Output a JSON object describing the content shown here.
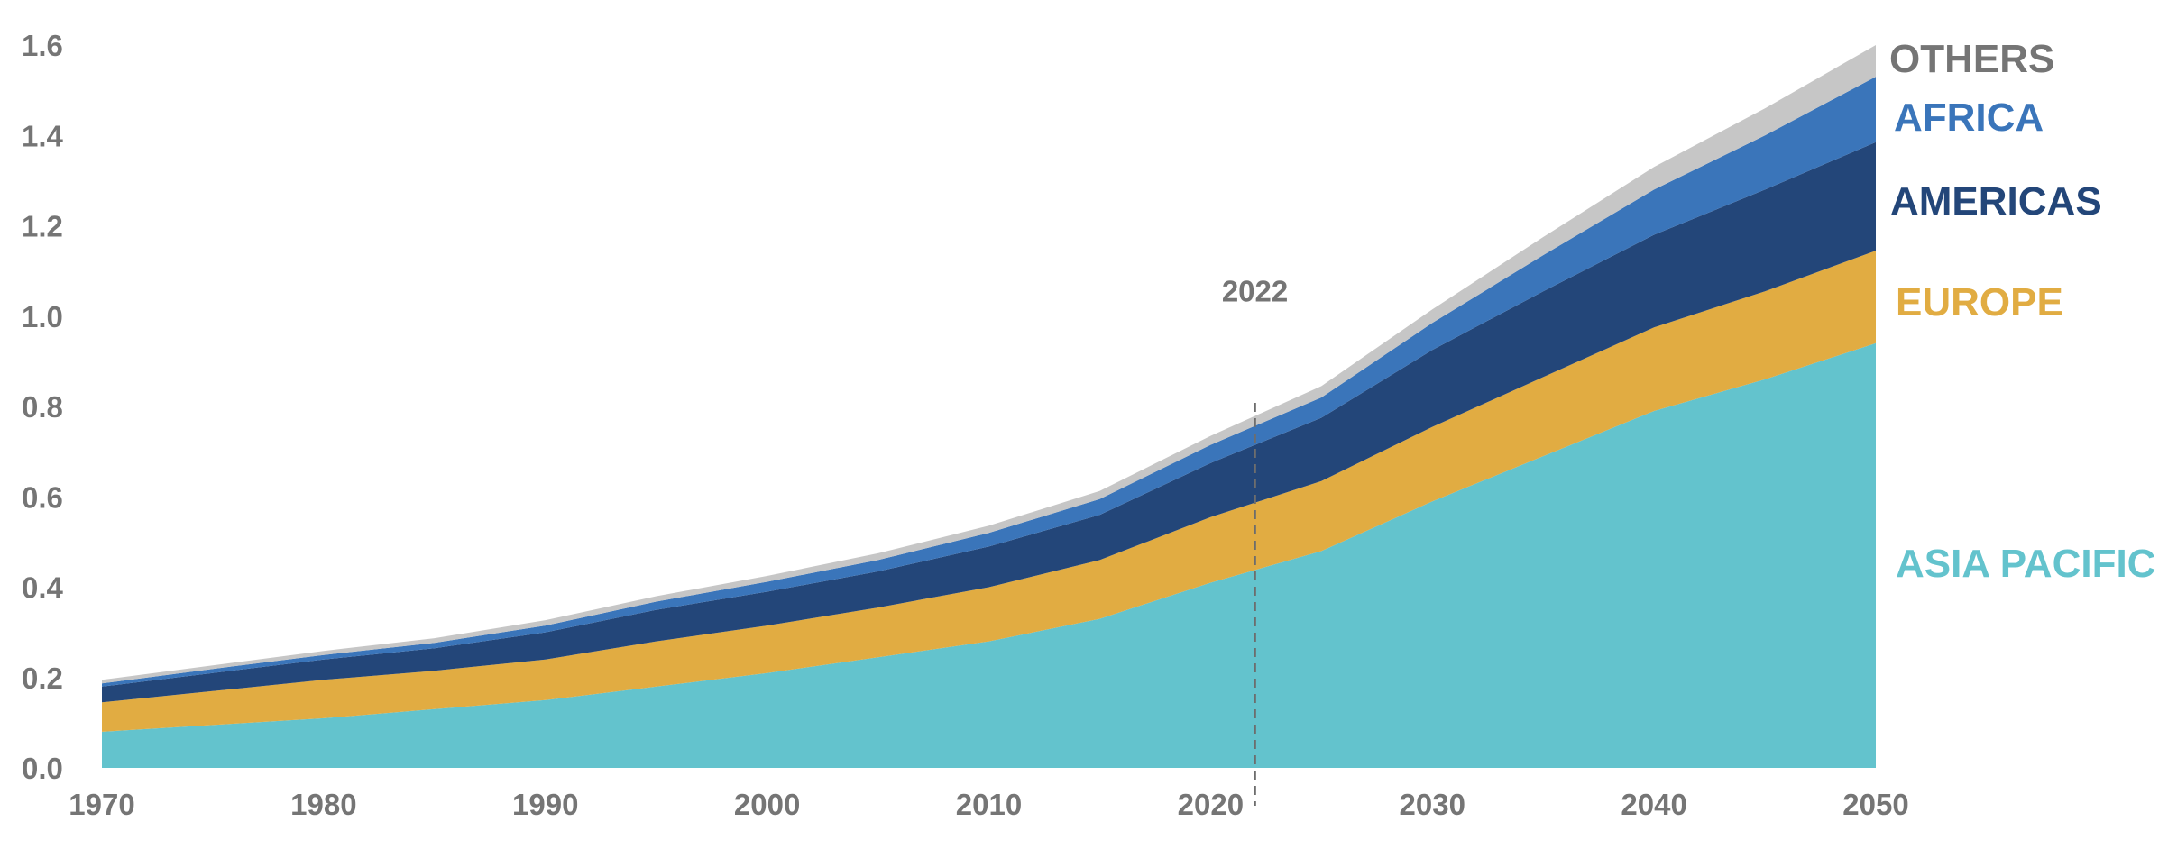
{
  "chart_data": {
    "type": "area",
    "stacked": true,
    "title": "",
    "xlabel": "",
    "ylabel": "",
    "x": [
      1970,
      1975,
      1980,
      1985,
      1990,
      1995,
      2000,
      2005,
      2010,
      2015,
      2020,
      2025,
      2030,
      2035,
      2040,
      2045,
      2050
    ],
    "xlim": [
      1970,
      2050
    ],
    "ylim": [
      0,
      1.6
    ],
    "x_ticks": [
      "1970",
      "1980",
      "1990",
      "2000",
      "2010",
      "2020",
      "2030",
      "2040",
      "2050"
    ],
    "y_ticks": [
      "0.0",
      "0.2",
      "0.4",
      "0.6",
      "0.8",
      "1.0",
      "1.2",
      "1.4",
      "1.6"
    ],
    "grid": false,
    "legend": "inline-right",
    "series": [
      {
        "name": "ASIA PACIFIC",
        "color": "#63C3CD",
        "values": [
          0.08,
          0.095,
          0.11,
          0.13,
          0.15,
          0.18,
          0.21,
          0.245,
          0.28,
          0.33,
          0.41,
          0.48,
          0.59,
          0.69,
          0.79,
          0.86,
          0.94
        ]
      },
      {
        "name": "EUROPE",
        "color": "#E1AC42",
        "values": [
          0.065,
          0.075,
          0.085,
          0.085,
          0.09,
          0.1,
          0.105,
          0.11,
          0.12,
          0.13,
          0.145,
          0.155,
          0.165,
          0.175,
          0.185,
          0.195,
          0.205
        ]
      },
      {
        "name": "AMERICAS",
        "color": "#234679",
        "values": [
          0.035,
          0.04,
          0.045,
          0.05,
          0.06,
          0.07,
          0.075,
          0.08,
          0.09,
          0.1,
          0.12,
          0.14,
          0.17,
          0.19,
          0.205,
          0.225,
          0.24
        ]
      },
      {
        "name": "AFRICA",
        "color": "#3A75BA",
        "values": [
          0.007,
          0.009,
          0.01,
          0.012,
          0.015,
          0.018,
          0.022,
          0.025,
          0.03,
          0.035,
          0.04,
          0.045,
          0.06,
          0.08,
          0.1,
          0.12,
          0.145
        ]
      },
      {
        "name": "OTHERS",
        "color": "#C6C6C6",
        "values": [
          0.008,
          0.008,
          0.009,
          0.01,
          0.012,
          0.012,
          0.013,
          0.015,
          0.016,
          0.018,
          0.02,
          0.025,
          0.03,
          0.04,
          0.05,
          0.06,
          0.07
        ]
      }
    ],
    "annotations": [
      {
        "text": "2022",
        "x": 2022,
        "style": "dashed-vertical-line",
        "color": "#6D6D6D"
      }
    ],
    "label_colors": {
      "OTHERS": "#757575",
      "AFRICA": "#3A75BA",
      "AMERICAS": "#234679",
      "EUROPE": "#E1AC42",
      "ASIA PACIFIC": "#63C3CD"
    },
    "label_order_top_to_bottom": [
      "OTHERS",
      "AFRICA",
      "AMERICAS",
      "EUROPE",
      "ASIA PACIFIC"
    ]
  }
}
